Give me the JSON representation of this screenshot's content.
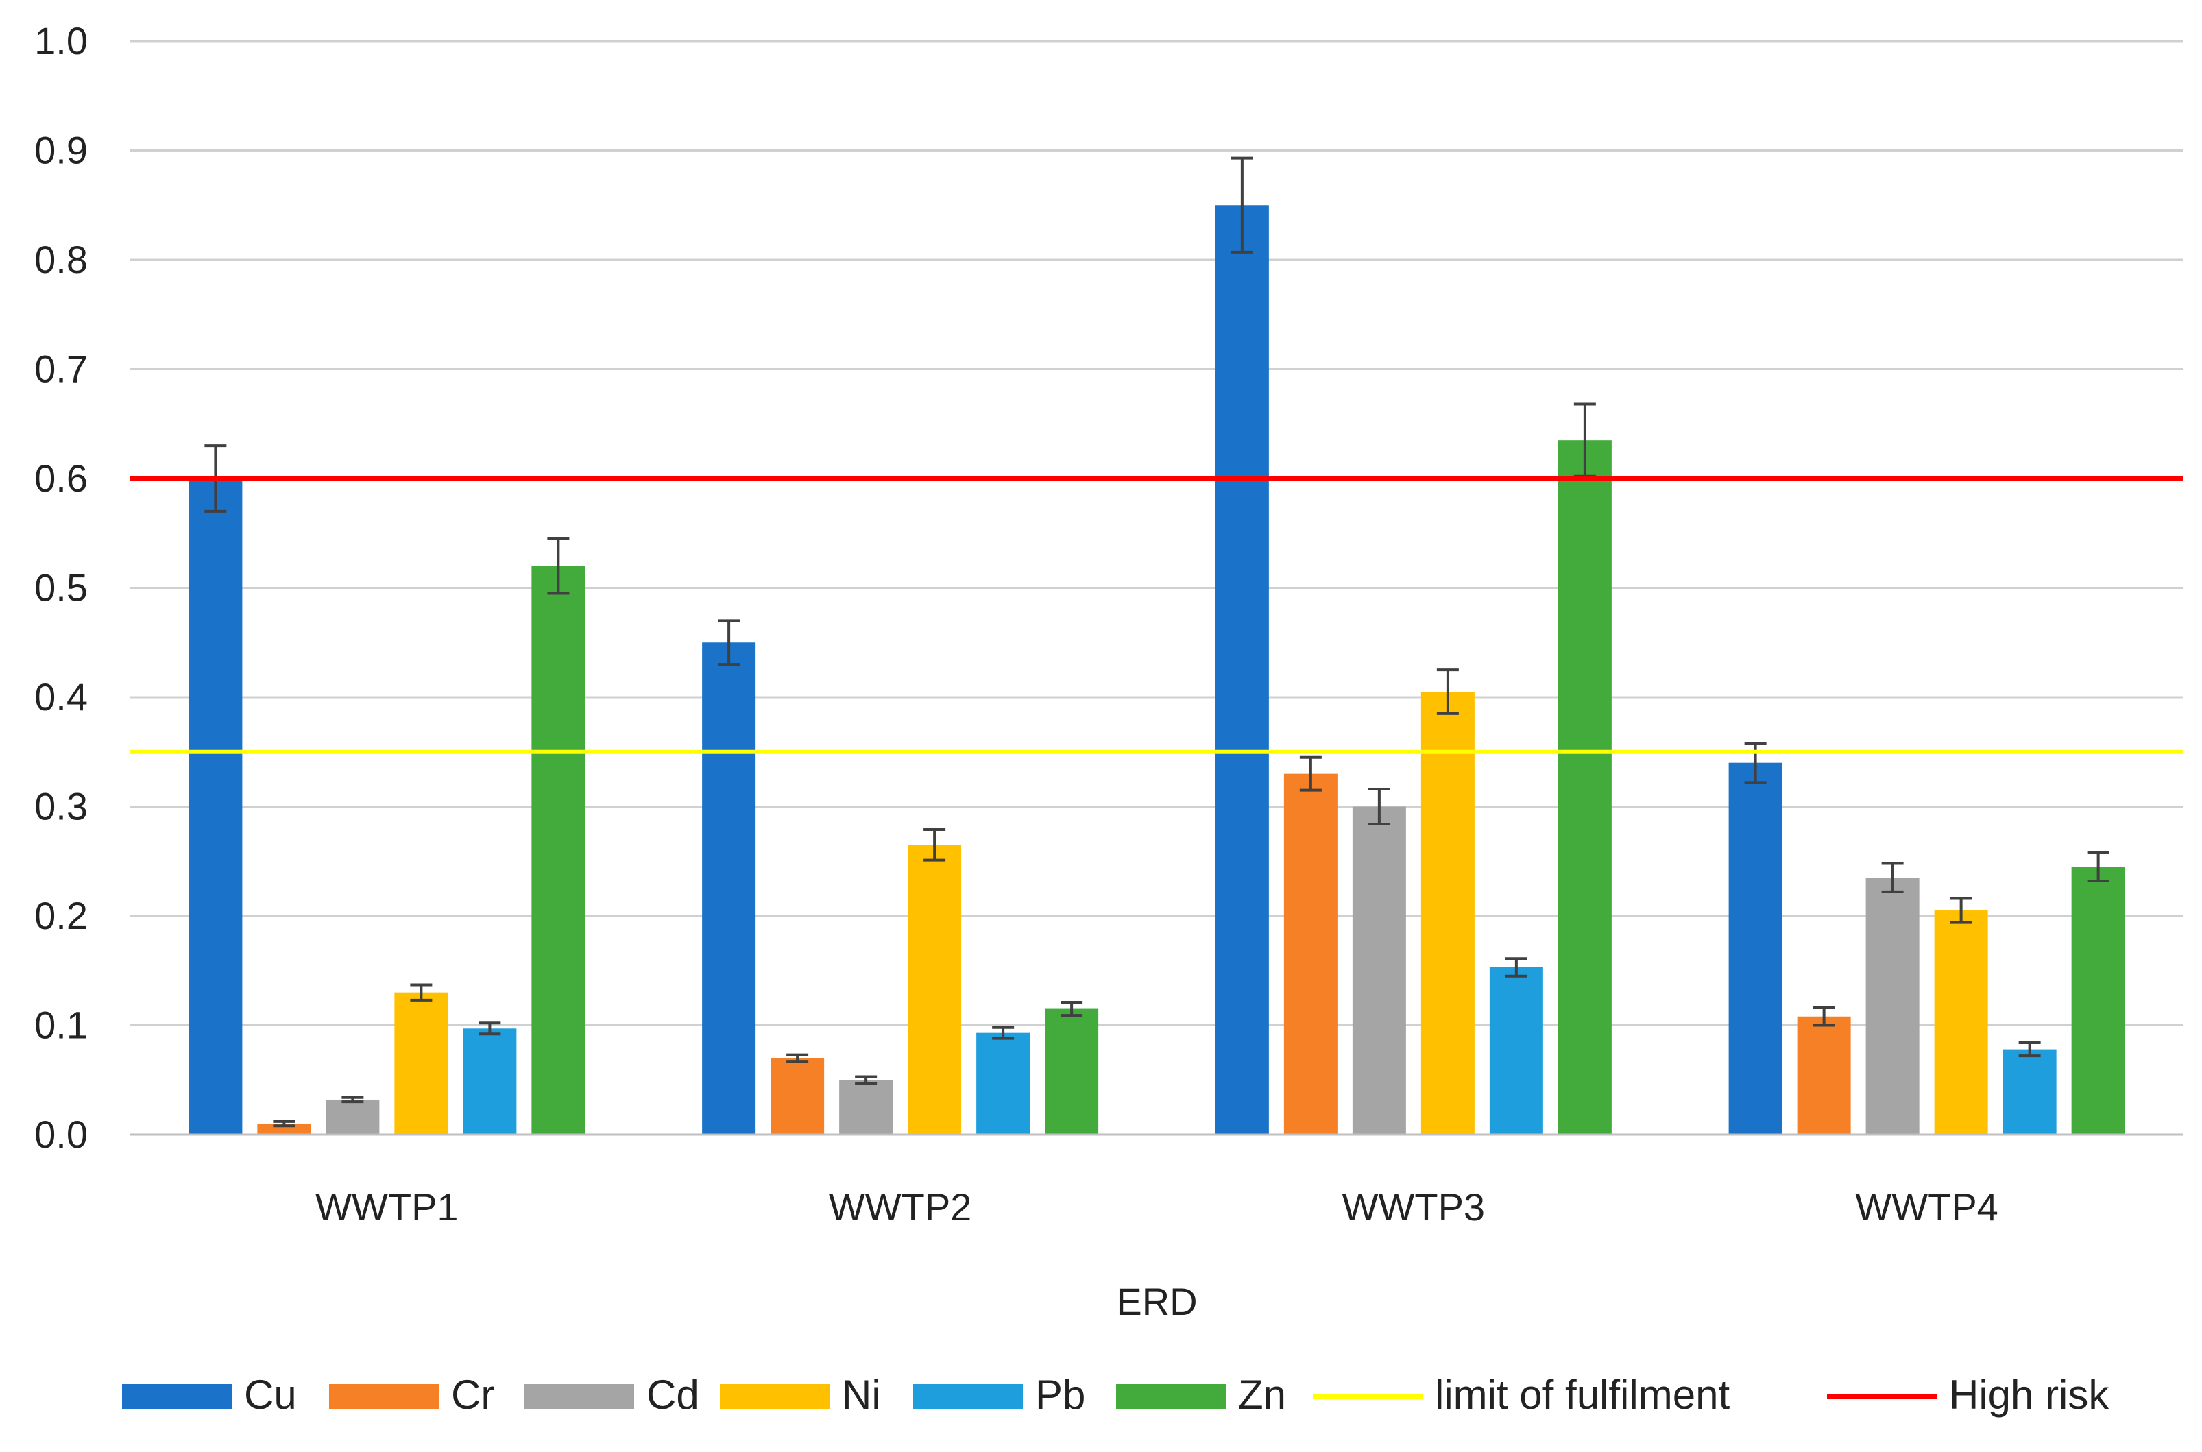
{
  "chart_data": {
    "type": "bar",
    "title": "",
    "xlabel": "ERD",
    "ylabel": "",
    "ylim": [
      0,
      1.0
    ],
    "yticks": [
      "0.0",
      "0.1",
      "0.2",
      "0.3",
      "0.4",
      "0.5",
      "0.6",
      "0.7",
      "0.8",
      "0.9",
      "1.0"
    ],
    "grid": true,
    "legend_position": "bottom",
    "categories": [
      "WWTP1",
      "WWTP2",
      "WWTP3",
      "WWTP4"
    ],
    "series": [
      {
        "name": "Cu",
        "color": "#1a72c9",
        "values": [
          0.6,
          0.45,
          0.85,
          0.34
        ],
        "errors": [
          0.03,
          0.02,
          0.043,
          0.018
        ]
      },
      {
        "name": "Cr",
        "color": "#f58025",
        "values": [
          0.01,
          0.07,
          0.33,
          0.108
        ],
        "errors": [
          0.002,
          0.003,
          0.015,
          0.008
        ]
      },
      {
        "name": "Cd",
        "color": "#a5a5a5",
        "values": [
          0.032,
          0.05,
          0.3,
          0.235
        ],
        "errors": [
          0.002,
          0.003,
          0.016,
          0.013
        ]
      },
      {
        "name": "Ni",
        "color": "#ffc000",
        "values": [
          0.13,
          0.265,
          0.405,
          0.205
        ],
        "errors": [
          0.007,
          0.014,
          0.02,
          0.011
        ]
      },
      {
        "name": "Pb",
        "color": "#1f9ede",
        "values": [
          0.097,
          0.093,
          0.153,
          0.078
        ],
        "errors": [
          0.005,
          0.005,
          0.008,
          0.006
        ]
      },
      {
        "name": "Zn",
        "color": "#43ab3b",
        "values": [
          0.52,
          0.115,
          0.635,
          0.245
        ],
        "errors": [
          0.025,
          0.006,
          0.033,
          0.013
        ]
      }
    ],
    "reference_lines": [
      {
        "name": "limit of fulfilment",
        "color": "#ffff00",
        "value": 0.35
      },
      {
        "name": "High risk",
        "color": "#ff0000",
        "value": 0.6
      }
    ]
  }
}
